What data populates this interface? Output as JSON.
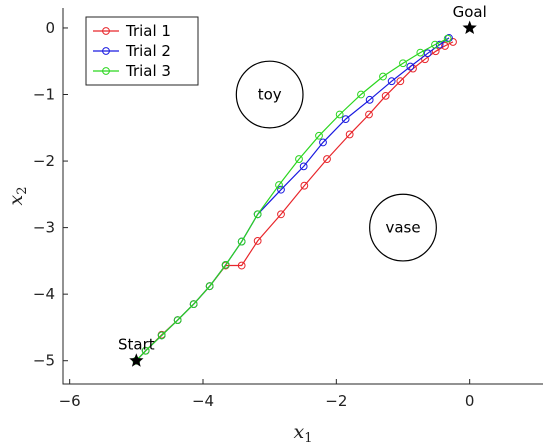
{
  "chart_data": {
    "type": "line",
    "xlabel": "x",
    "xlabel_sub": "1",
    "ylabel": "x",
    "ylabel_sub": "2",
    "xlim": [
      -6.1,
      1.1
    ],
    "ylim": [
      -5.35,
      0.3
    ],
    "xticks": [
      -6,
      -4,
      -2,
      0
    ],
    "yticks": [
      0,
      -1,
      -2,
      -3,
      -4,
      -5
    ],
    "xtick_labels": [
      "−6",
      "−4",
      "−2",
      "0"
    ],
    "ytick_labels": [
      "0",
      "−1",
      "−2",
      "−3",
      "−4",
      "−5"
    ],
    "grid": false,
    "legend_position": "top-left",
    "series": [
      {
        "name": "Trial 1",
        "color": "#e8262b",
        "x": [
          -5.0,
          -4.86,
          -4.62,
          -4.38,
          -4.14,
          -3.9,
          -3.66,
          -3.42,
          -3.18,
          -2.83,
          -2.48,
          -2.14,
          -1.8,
          -1.51,
          -1.26,
          -1.04,
          -0.85,
          -0.67,
          -0.51,
          -0.37,
          -0.25
        ],
        "y": [
          -5.0,
          -4.85,
          -4.61,
          -4.39,
          -4.15,
          -3.88,
          -3.57,
          -3.57,
          -3.2,
          -2.8,
          -2.37,
          -1.97,
          -1.6,
          -1.3,
          -1.02,
          -0.8,
          -0.61,
          -0.47,
          -0.35,
          -0.27,
          -0.21
        ]
      },
      {
        "name": "Trial 2",
        "color": "#1a1ae0",
        "x": [
          -5.0,
          -4.86,
          -4.62,
          -4.38,
          -4.14,
          -3.9,
          -3.66,
          -3.42,
          -3.18,
          -2.83,
          -2.49,
          -2.2,
          -1.86,
          -1.5,
          -1.17,
          -0.89,
          -0.63,
          -0.45,
          -0.31
        ],
        "y": [
          -5.0,
          -4.85,
          -4.62,
          -4.39,
          -4.15,
          -3.88,
          -3.56,
          -3.21,
          -2.8,
          -2.43,
          -2.08,
          -1.72,
          -1.37,
          -1.08,
          -0.8,
          -0.58,
          -0.38,
          -0.25,
          -0.15
        ]
      },
      {
        "name": "Trial 3",
        "color": "#2bd61f",
        "x": [
          -5.0,
          -4.86,
          -4.62,
          -4.38,
          -4.14,
          -3.9,
          -3.66,
          -3.42,
          -3.18,
          -2.86,
          -2.56,
          -2.26,
          -1.95,
          -1.63,
          -1.3,
          -1.0,
          -0.74,
          -0.52,
          -0.33
        ],
        "y": [
          -5.0,
          -4.85,
          -4.62,
          -4.39,
          -4.15,
          -3.88,
          -3.56,
          -3.21,
          -2.8,
          -2.36,
          -1.97,
          -1.62,
          -1.3,
          -1.0,
          -0.73,
          -0.53,
          -0.37,
          -0.25,
          -0.16
        ]
      }
    ],
    "markers": [
      {
        "label": "Start",
        "x": -5.0,
        "y": -5.0
      },
      {
        "label": "Goal",
        "x": 0.0,
        "y": 0.0
      }
    ],
    "obstacles": [
      {
        "label": "toy",
        "x": -3.0,
        "y": -1.0,
        "r": 0.5
      },
      {
        "label": "vase",
        "x": -1.0,
        "y": -3.0,
        "r": 0.5
      }
    ]
  }
}
